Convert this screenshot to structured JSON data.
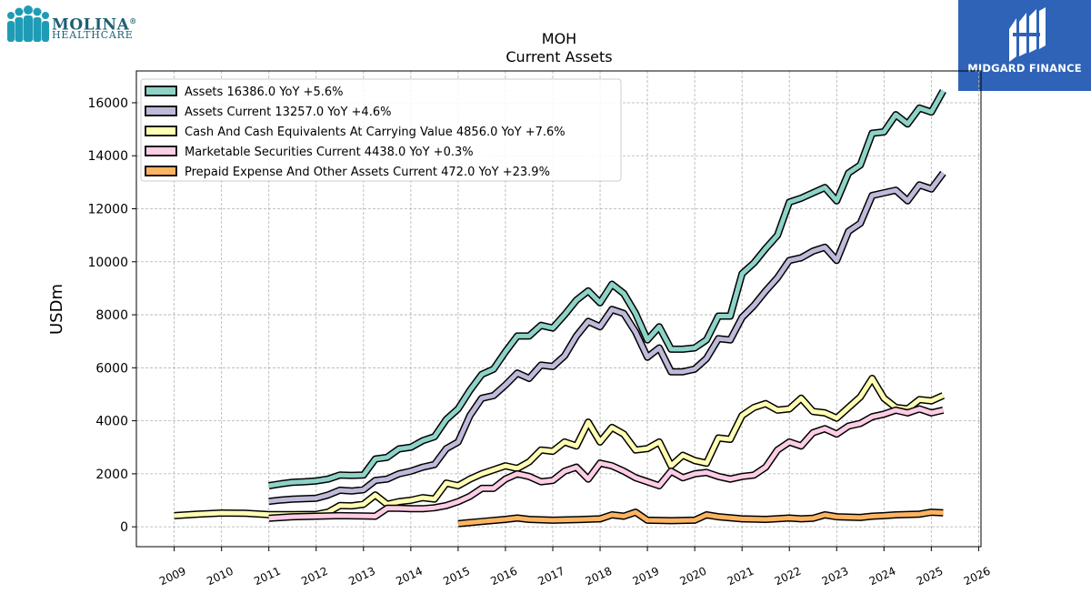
{
  "logo": {
    "name": "MOLINA",
    "sub": "HEALTHCARE",
    "mark": "®",
    "color": "#1f9bb5"
  },
  "badge": {
    "text": "MIDGARD FINANCE",
    "bg": "#2e63b8"
  },
  "chart_data": {
    "type": "line",
    "title": "MOH",
    "subtitle": "Current  Assets",
    "ylabel": "USDm",
    "xlabel": "",
    "xlim": [
      2008.2,
      2026.05
    ],
    "ylim": [
      -750,
      17200
    ],
    "yticks": [
      0,
      2000,
      4000,
      6000,
      8000,
      10000,
      12000,
      14000,
      16000
    ],
    "xticks": [
      2009,
      2010,
      2011,
      2012,
      2013,
      2014,
      2015,
      2016,
      2017,
      2018,
      2019,
      2020,
      2021,
      2022,
      2023,
      2024,
      2025,
      2026
    ],
    "grid": true,
    "legend_position": "top-left",
    "series": [
      {
        "name": "Assets",
        "legend": "Assets  16386.0 YoY +5.6%",
        "color": "#8dd3c7",
        "points": [
          [
            2011.0,
            1550
          ],
          [
            2011.25,
            1620
          ],
          [
            2011.5,
            1680
          ],
          [
            2011.75,
            1700
          ],
          [
            2012.0,
            1730
          ],
          [
            2012.25,
            1800
          ],
          [
            2012.5,
            1950
          ],
          [
            2012.75,
            1940
          ],
          [
            2013.0,
            1950
          ],
          [
            2013.25,
            2560
          ],
          [
            2013.5,
            2620
          ],
          [
            2013.75,
            2940
          ],
          [
            2014.0,
            3000
          ],
          [
            2014.25,
            3250
          ],
          [
            2014.5,
            3400
          ],
          [
            2014.75,
            4050
          ],
          [
            2015.0,
            4450
          ],
          [
            2015.25,
            5150
          ],
          [
            2015.5,
            5750
          ],
          [
            2015.75,
            5950
          ],
          [
            2016.0,
            6600
          ],
          [
            2016.25,
            7200
          ],
          [
            2016.5,
            7200
          ],
          [
            2016.75,
            7600
          ],
          [
            2017.0,
            7500
          ],
          [
            2017.25,
            8000
          ],
          [
            2017.5,
            8550
          ],
          [
            2017.75,
            8900
          ],
          [
            2018.0,
            8450
          ],
          [
            2018.25,
            9150
          ],
          [
            2018.5,
            8800
          ],
          [
            2018.75,
            8050
          ],
          [
            2019.0,
            7050
          ],
          [
            2019.25,
            7550
          ],
          [
            2019.5,
            6700
          ],
          [
            2019.75,
            6700
          ],
          [
            2020.0,
            6750
          ],
          [
            2020.25,
            7050
          ],
          [
            2020.5,
            7950
          ],
          [
            2020.75,
            7950
          ],
          [
            2021.0,
            9550
          ],
          [
            2021.25,
            9950
          ],
          [
            2021.5,
            10500
          ],
          [
            2021.75,
            11000
          ],
          [
            2022.0,
            12250
          ],
          [
            2022.25,
            12400
          ],
          [
            2022.5,
            12600
          ],
          [
            2022.75,
            12800
          ],
          [
            2023.0,
            12300
          ],
          [
            2023.25,
            13350
          ],
          [
            2023.5,
            13650
          ],
          [
            2023.75,
            14850
          ],
          [
            2024.0,
            14900
          ],
          [
            2024.25,
            15550
          ],
          [
            2024.5,
            15200
          ],
          [
            2024.75,
            15800
          ],
          [
            2025.0,
            15650
          ],
          [
            2025.25,
            16450
          ]
        ]
      },
      {
        "name": "Assets Current",
        "legend": "Assets Current  13257.0 YoY +4.6%",
        "color": "#bebada",
        "points": [
          [
            2011.0,
            960
          ],
          [
            2011.25,
            1010
          ],
          [
            2011.5,
            1040
          ],
          [
            2011.75,
            1060
          ],
          [
            2012.0,
            1080
          ],
          [
            2012.25,
            1200
          ],
          [
            2012.5,
            1380
          ],
          [
            2012.75,
            1350
          ],
          [
            2013.0,
            1400
          ],
          [
            2013.25,
            1750
          ],
          [
            2013.5,
            1800
          ],
          [
            2013.75,
            2000
          ],
          [
            2014.0,
            2100
          ],
          [
            2014.25,
            2250
          ],
          [
            2014.5,
            2350
          ],
          [
            2014.75,
            2950
          ],
          [
            2015.0,
            3200
          ],
          [
            2015.25,
            4200
          ],
          [
            2015.5,
            4850
          ],
          [
            2015.75,
            4950
          ],
          [
            2016.0,
            5350
          ],
          [
            2016.25,
            5800
          ],
          [
            2016.5,
            5600
          ],
          [
            2016.75,
            6100
          ],
          [
            2017.0,
            6050
          ],
          [
            2017.25,
            6450
          ],
          [
            2017.5,
            7200
          ],
          [
            2017.75,
            7750
          ],
          [
            2018.0,
            7550
          ],
          [
            2018.25,
            8200
          ],
          [
            2018.5,
            8050
          ],
          [
            2018.75,
            7350
          ],
          [
            2019.0,
            6400
          ],
          [
            2019.25,
            6750
          ],
          [
            2019.5,
            5850
          ],
          [
            2019.75,
            5850
          ],
          [
            2020.0,
            5950
          ],
          [
            2020.25,
            6350
          ],
          [
            2020.5,
            7100
          ],
          [
            2020.75,
            7050
          ],
          [
            2021.0,
            7900
          ],
          [
            2021.25,
            8350
          ],
          [
            2021.5,
            8900
          ],
          [
            2021.75,
            9400
          ],
          [
            2022.0,
            10050
          ],
          [
            2022.25,
            10150
          ],
          [
            2022.5,
            10400
          ],
          [
            2022.75,
            10550
          ],
          [
            2023.0,
            10050
          ],
          [
            2023.25,
            11150
          ],
          [
            2023.5,
            11450
          ],
          [
            2023.75,
            12500
          ],
          [
            2024.0,
            12600
          ],
          [
            2024.25,
            12700
          ],
          [
            2024.5,
            12300
          ],
          [
            2024.75,
            12900
          ],
          [
            2025.0,
            12750
          ],
          [
            2025.25,
            13350
          ]
        ]
      },
      {
        "name": "Cash And Cash Equivalents At Carrying Value",
        "legend": "Cash And Cash Equivalents At Carrying Value  4856.0 YoY +7.6%",
        "color": "#ffffb3",
        "points": [
          [
            2009.0,
            420
          ],
          [
            2009.5,
            480
          ],
          [
            2010.0,
            520
          ],
          [
            2010.5,
            510
          ],
          [
            2011.0,
            460
          ],
          [
            2011.5,
            460
          ],
          [
            2012.0,
            470
          ],
          [
            2012.25,
            550
          ],
          [
            2012.5,
            800
          ],
          [
            2012.75,
            790
          ],
          [
            2013.0,
            850
          ],
          [
            2013.25,
            1200
          ],
          [
            2013.5,
            850
          ],
          [
            2013.75,
            950
          ],
          [
            2014.0,
            1000
          ],
          [
            2014.25,
            1100
          ],
          [
            2014.5,
            1050
          ],
          [
            2014.75,
            1650
          ],
          [
            2015.0,
            1550
          ],
          [
            2015.25,
            1800
          ],
          [
            2015.5,
            2000
          ],
          [
            2015.75,
            2150
          ],
          [
            2016.0,
            2300
          ],
          [
            2016.25,
            2200
          ],
          [
            2016.5,
            2450
          ],
          [
            2016.75,
            2900
          ],
          [
            2017.0,
            2850
          ],
          [
            2017.25,
            3200
          ],
          [
            2017.5,
            3050
          ],
          [
            2017.75,
            3950
          ],
          [
            2018.0,
            3200
          ],
          [
            2018.25,
            3750
          ],
          [
            2018.5,
            3500
          ],
          [
            2018.75,
            2900
          ],
          [
            2019.0,
            2950
          ],
          [
            2019.25,
            3200
          ],
          [
            2019.5,
            2300
          ],
          [
            2019.75,
            2700
          ],
          [
            2020.0,
            2500
          ],
          [
            2020.25,
            2400
          ],
          [
            2020.5,
            3350
          ],
          [
            2020.75,
            3300
          ],
          [
            2021.0,
            4200
          ],
          [
            2021.25,
            4500
          ],
          [
            2021.5,
            4650
          ],
          [
            2021.75,
            4400
          ],
          [
            2022.0,
            4450
          ],
          [
            2022.25,
            4850
          ],
          [
            2022.5,
            4350
          ],
          [
            2022.75,
            4300
          ],
          [
            2023.0,
            4100
          ],
          [
            2023.25,
            4500
          ],
          [
            2023.5,
            4900
          ],
          [
            2023.75,
            5600
          ],
          [
            2024.0,
            4850
          ],
          [
            2024.25,
            4500
          ],
          [
            2024.5,
            4450
          ],
          [
            2024.75,
            4800
          ],
          [
            2025.0,
            4750
          ],
          [
            2025.25,
            4950
          ]
        ]
      },
      {
        "name": "Marketable Securities Current",
        "legend": "Marketable Securities Current  4438.0 YoY +0.3%",
        "color": "#fccde5",
        "points": [
          [
            2011.0,
            320
          ],
          [
            2011.5,
            380
          ],
          [
            2012.0,
            400
          ],
          [
            2012.5,
            420
          ],
          [
            2013.0,
            410
          ],
          [
            2013.25,
            400
          ],
          [
            2013.5,
            700
          ],
          [
            2013.75,
            700
          ],
          [
            2014.0,
            680
          ],
          [
            2014.25,
            680
          ],
          [
            2014.5,
            720
          ],
          [
            2014.75,
            800
          ],
          [
            2015.0,
            950
          ],
          [
            2015.25,
            1150
          ],
          [
            2015.5,
            1450
          ],
          [
            2015.75,
            1450
          ],
          [
            2016.0,
            1800
          ],
          [
            2016.25,
            2000
          ],
          [
            2016.5,
            1900
          ],
          [
            2016.75,
            1700
          ],
          [
            2017.0,
            1750
          ],
          [
            2017.25,
            2100
          ],
          [
            2017.5,
            2250
          ],
          [
            2017.75,
            1800
          ],
          [
            2018.0,
            2400
          ],
          [
            2018.25,
            2300
          ],
          [
            2018.5,
            2100
          ],
          [
            2018.75,
            1850
          ],
          [
            2019.0,
            1700
          ],
          [
            2019.25,
            1550
          ],
          [
            2019.5,
            2100
          ],
          [
            2019.75,
            1850
          ],
          [
            2020.0,
            2000
          ],
          [
            2020.25,
            2050
          ],
          [
            2020.5,
            1900
          ],
          [
            2020.75,
            1800
          ],
          [
            2021.0,
            1900
          ],
          [
            2021.25,
            1950
          ],
          [
            2021.5,
            2250
          ],
          [
            2021.75,
            2900
          ],
          [
            2022.0,
            3200
          ],
          [
            2022.25,
            3050
          ],
          [
            2022.5,
            3550
          ],
          [
            2022.75,
            3700
          ],
          [
            2023.0,
            3500
          ],
          [
            2023.25,
            3800
          ],
          [
            2023.5,
            3900
          ],
          [
            2023.75,
            4150
          ],
          [
            2024.0,
            4250
          ],
          [
            2024.25,
            4400
          ],
          [
            2024.5,
            4300
          ],
          [
            2024.75,
            4450
          ],
          [
            2025.0,
            4300
          ],
          [
            2025.25,
            4400
          ]
        ]
      },
      {
        "name": "Prepaid Expense And Other Assets Current",
        "legend": "Prepaid Expense And Other Assets Current  472.0 YoY +23.9%",
        "color": "#fdb462",
        "points": [
          [
            2015.0,
            120
          ],
          [
            2015.5,
            200
          ],
          [
            2016.0,
            280
          ],
          [
            2016.25,
            330
          ],
          [
            2016.5,
            280
          ],
          [
            2017.0,
            250
          ],
          [
            2017.5,
            270
          ],
          [
            2018.0,
            300
          ],
          [
            2018.25,
            450
          ],
          [
            2018.5,
            400
          ],
          [
            2018.75,
            550
          ],
          [
            2019.0,
            250
          ],
          [
            2019.5,
            230
          ],
          [
            2020.0,
            250
          ],
          [
            2020.25,
            450
          ],
          [
            2020.5,
            380
          ],
          [
            2021.0,
            300
          ],
          [
            2021.5,
            280
          ],
          [
            2022.0,
            330
          ],
          [
            2022.25,
            300
          ],
          [
            2022.5,
            320
          ],
          [
            2022.75,
            450
          ],
          [
            2023.0,
            380
          ],
          [
            2023.5,
            350
          ],
          [
            2023.75,
            400
          ],
          [
            2024.0,
            420
          ],
          [
            2024.25,
            450
          ],
          [
            2024.75,
            480
          ],
          [
            2025.0,
            550
          ],
          [
            2025.25,
            530
          ]
        ]
      }
    ]
  }
}
